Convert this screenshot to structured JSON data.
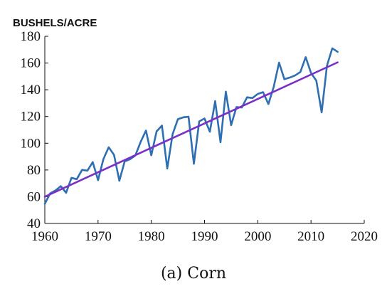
{
  "chart_data": {
    "type": "line",
    "ylabel": "BUSHELS/ACRE",
    "xlabel": "",
    "caption": "(a) Corn",
    "xlim": [
      1960,
      2020
    ],
    "ylim": [
      40,
      180
    ],
    "xticks": [
      1960,
      1970,
      1980,
      1990,
      2000,
      2010,
      2020
    ],
    "yticks": [
      40,
      60,
      80,
      100,
      120,
      140,
      160,
      180
    ],
    "grid": false,
    "series": [
      {
        "kind": "observed",
        "color": "#2e6fb3",
        "x": [
          1960,
          1961,
          1962,
          1963,
          1964,
          1965,
          1966,
          1967,
          1968,
          1969,
          1970,
          1971,
          1972,
          1973,
          1974,
          1975,
          1976,
          1977,
          1978,
          1979,
          1980,
          1981,
          1982,
          1983,
          1984,
          1985,
          1986,
          1987,
          1988,
          1989,
          1990,
          1991,
          1992,
          1993,
          1994,
          1995,
          1996,
          1997,
          1998,
          1999,
          2000,
          2001,
          2002,
          2003,
          2004,
          2005,
          2006,
          2007,
          2008,
          2009,
          2010,
          2011,
          2012,
          2013,
          2014,
          2015
        ],
        "y": [
          54.7,
          62.5,
          64.7,
          67.9,
          62.9,
          74.1,
          73.1,
          80.1,
          79.5,
          85.9,
          72.4,
          88.1,
          97.0,
          91.3,
          71.9,
          86.4,
          88.0,
          90.8,
          101.0,
          109.5,
          91.0,
          108.9,
          113.2,
          81.1,
          106.7,
          118.0,
          119.4,
          119.8,
          84.6,
          116.3,
          118.5,
          108.6,
          131.5,
          100.7,
          138.6,
          113.5,
          127.1,
          126.7,
          134.4,
          133.8,
          136.9,
          138.2,
          129.3,
          142.2,
          160.3,
          147.9,
          149.1,
          150.7,
          153.3,
          164.4,
          152.6,
          146.8,
          123.1,
          158.1,
          171.0,
          168.4
        ]
      },
      {
        "kind": "trend",
        "color": "#7b2fc7",
        "x": [
          1960,
          2015
        ],
        "y": [
          60.0,
          160.5
        ]
      }
    ]
  }
}
